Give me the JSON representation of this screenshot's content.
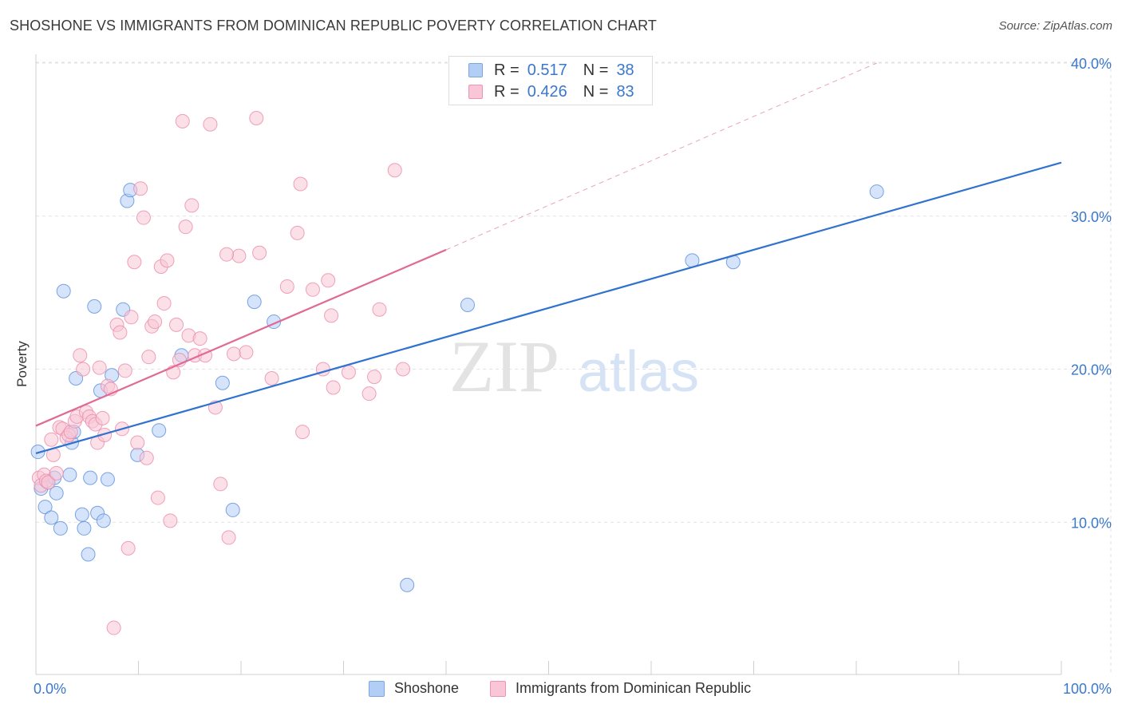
{
  "header": {
    "title": "SHOSHONE VS IMMIGRANTS FROM DOMINICAN REPUBLIC POVERTY CORRELATION CHART",
    "source": "Source: ZipAtlas.com"
  },
  "legend": {
    "r_label": "R =",
    "n_label": "N =",
    "series": [
      {
        "name": "Shoshone",
        "r": "0.517",
        "n": "38",
        "color": "#5b8fdb"
      },
      {
        "name": "Immigrants from Dominican Republic",
        "r": "0.426",
        "n": "83",
        "color": "#ec8aab"
      }
    ]
  },
  "watermark": {
    "zip": "ZIP",
    "atlas": "atlas"
  },
  "chart_data": {
    "type": "scatter",
    "title": "SHOSHONE VS IMMIGRANTS FROM DOMINICAN REPUBLIC POVERTY CORRELATION CHART",
    "xlabel": "",
    "ylabel": "Poverty",
    "xlim": [
      0,
      100
    ],
    "ylim": [
      0,
      40
    ],
    "x_tick_labels": [
      "0.0%",
      "100.0%"
    ],
    "y_ticks": [
      10,
      20,
      30,
      40
    ],
    "y_tick_labels": [
      "10.0%",
      "20.0%",
      "30.0%",
      "40.0%"
    ],
    "grid": true,
    "series": [
      {
        "name": "Shoshone",
        "color": "#5b8fdb",
        "fill": "#b3cef5",
        "trend": {
          "x": [
            0,
            100
          ],
          "y": [
            14.5,
            33.5
          ],
          "style": "solid"
        },
        "points": [
          [
            0.2,
            14.6
          ],
          [
            0.5,
            12.2
          ],
          [
            0.9,
            11.0
          ],
          [
            1.2,
            12.6
          ],
          [
            1.5,
            10.3
          ],
          [
            1.8,
            12.9
          ],
          [
            2.0,
            11.9
          ],
          [
            2.4,
            9.6
          ],
          [
            2.7,
            25.1
          ],
          [
            3.3,
            13.1
          ],
          [
            3.5,
            15.2
          ],
          [
            3.7,
            15.9
          ],
          [
            3.9,
            19.4
          ],
          [
            4.5,
            10.5
          ],
          [
            4.7,
            9.6
          ],
          [
            5.1,
            7.9
          ],
          [
            5.3,
            12.9
          ],
          [
            5.7,
            24.1
          ],
          [
            6.0,
            10.6
          ],
          [
            6.3,
            18.6
          ],
          [
            6.6,
            10.1
          ],
          [
            7.0,
            12.8
          ],
          [
            7.4,
            19.6
          ],
          [
            8.5,
            23.9
          ],
          [
            8.9,
            31.0
          ],
          [
            9.2,
            31.7
          ],
          [
            9.9,
            14.4
          ],
          [
            12.0,
            16.0
          ],
          [
            14.2,
            20.9
          ],
          [
            18.2,
            19.1
          ],
          [
            19.2,
            10.8
          ],
          [
            21.3,
            24.4
          ],
          [
            23.2,
            23.1
          ],
          [
            36.2,
            5.9
          ],
          [
            42.1,
            24.2
          ],
          [
            64.0,
            27.1
          ],
          [
            68.0,
            27.0
          ],
          [
            82.0,
            31.6
          ]
        ]
      },
      {
        "name": "Immigrants from Dominican Republic",
        "color": "#ec8aab",
        "fill": "#f8c6d6",
        "trend": {
          "x": [
            0,
            40
          ],
          "y": [
            16.3,
            27.8
          ],
          "style": "solid",
          "extended_to": [
            82,
            40.0
          ]
        },
        "points": [
          [
            0.3,
            12.9
          ],
          [
            0.5,
            12.4
          ],
          [
            0.8,
            13.1
          ],
          [
            1.0,
            12.7
          ],
          [
            1.2,
            12.6
          ],
          [
            1.5,
            15.4
          ],
          [
            1.7,
            14.4
          ],
          [
            2.0,
            13.2
          ],
          [
            2.3,
            16.2
          ],
          [
            2.6,
            16.1
          ],
          [
            3.0,
            15.5
          ],
          [
            3.2,
            15.7
          ],
          [
            3.4,
            15.9
          ],
          [
            3.8,
            16.6
          ],
          [
            4.0,
            16.9
          ],
          [
            4.3,
            20.9
          ],
          [
            4.6,
            20.0
          ],
          [
            4.9,
            17.2
          ],
          [
            5.2,
            16.9
          ],
          [
            5.5,
            16.6
          ],
          [
            5.8,
            16.4
          ],
          [
            6.0,
            15.2
          ],
          [
            6.2,
            20.1
          ],
          [
            6.5,
            16.8
          ],
          [
            6.7,
            15.7
          ],
          [
            7.0,
            18.9
          ],
          [
            7.3,
            18.7
          ],
          [
            7.6,
            3.1
          ],
          [
            7.9,
            22.9
          ],
          [
            8.2,
            22.4
          ],
          [
            8.4,
            16.1
          ],
          [
            8.7,
            19.9
          ],
          [
            9.0,
            8.3
          ],
          [
            9.3,
            23.4
          ],
          [
            9.6,
            27.0
          ],
          [
            9.9,
            15.2
          ],
          [
            10.2,
            31.8
          ],
          [
            10.5,
            29.9
          ],
          [
            10.8,
            14.2
          ],
          [
            11.0,
            20.8
          ],
          [
            11.3,
            22.8
          ],
          [
            11.6,
            23.1
          ],
          [
            11.9,
            11.6
          ],
          [
            12.2,
            26.7
          ],
          [
            12.5,
            24.3
          ],
          [
            12.8,
            27.1
          ],
          [
            13.1,
            10.1
          ],
          [
            13.4,
            19.8
          ],
          [
            13.7,
            22.9
          ],
          [
            14.0,
            20.6
          ],
          [
            14.3,
            36.2
          ],
          [
            14.6,
            29.3
          ],
          [
            14.9,
            22.2
          ],
          [
            15.2,
            30.7
          ],
          [
            15.5,
            20.9
          ],
          [
            16.0,
            22.0
          ],
          [
            16.5,
            20.9
          ],
          [
            17.0,
            36.0
          ],
          [
            17.5,
            17.5
          ],
          [
            18.0,
            12.5
          ],
          [
            18.8,
            9.0
          ],
          [
            19.3,
            21.0
          ],
          [
            19.8,
            27.4
          ],
          [
            20.5,
            21.1
          ],
          [
            21.5,
            36.4
          ],
          [
            21.8,
            27.6
          ],
          [
            23.0,
            19.4
          ],
          [
            24.5,
            25.4
          ],
          [
            25.5,
            28.9
          ],
          [
            25.8,
            32.1
          ],
          [
            26.0,
            15.9
          ],
          [
            27.0,
            25.2
          ],
          [
            28.0,
            20.0
          ],
          [
            28.5,
            25.8
          ],
          [
            28.8,
            23.5
          ],
          [
            29.0,
            18.8
          ],
          [
            30.5,
            19.8
          ],
          [
            32.5,
            18.4
          ],
          [
            33.0,
            19.5
          ],
          [
            33.5,
            23.9
          ],
          [
            35.0,
            33.0
          ],
          [
            35.8,
            20.0
          ],
          [
            18.6,
            27.5
          ]
        ]
      }
    ]
  }
}
